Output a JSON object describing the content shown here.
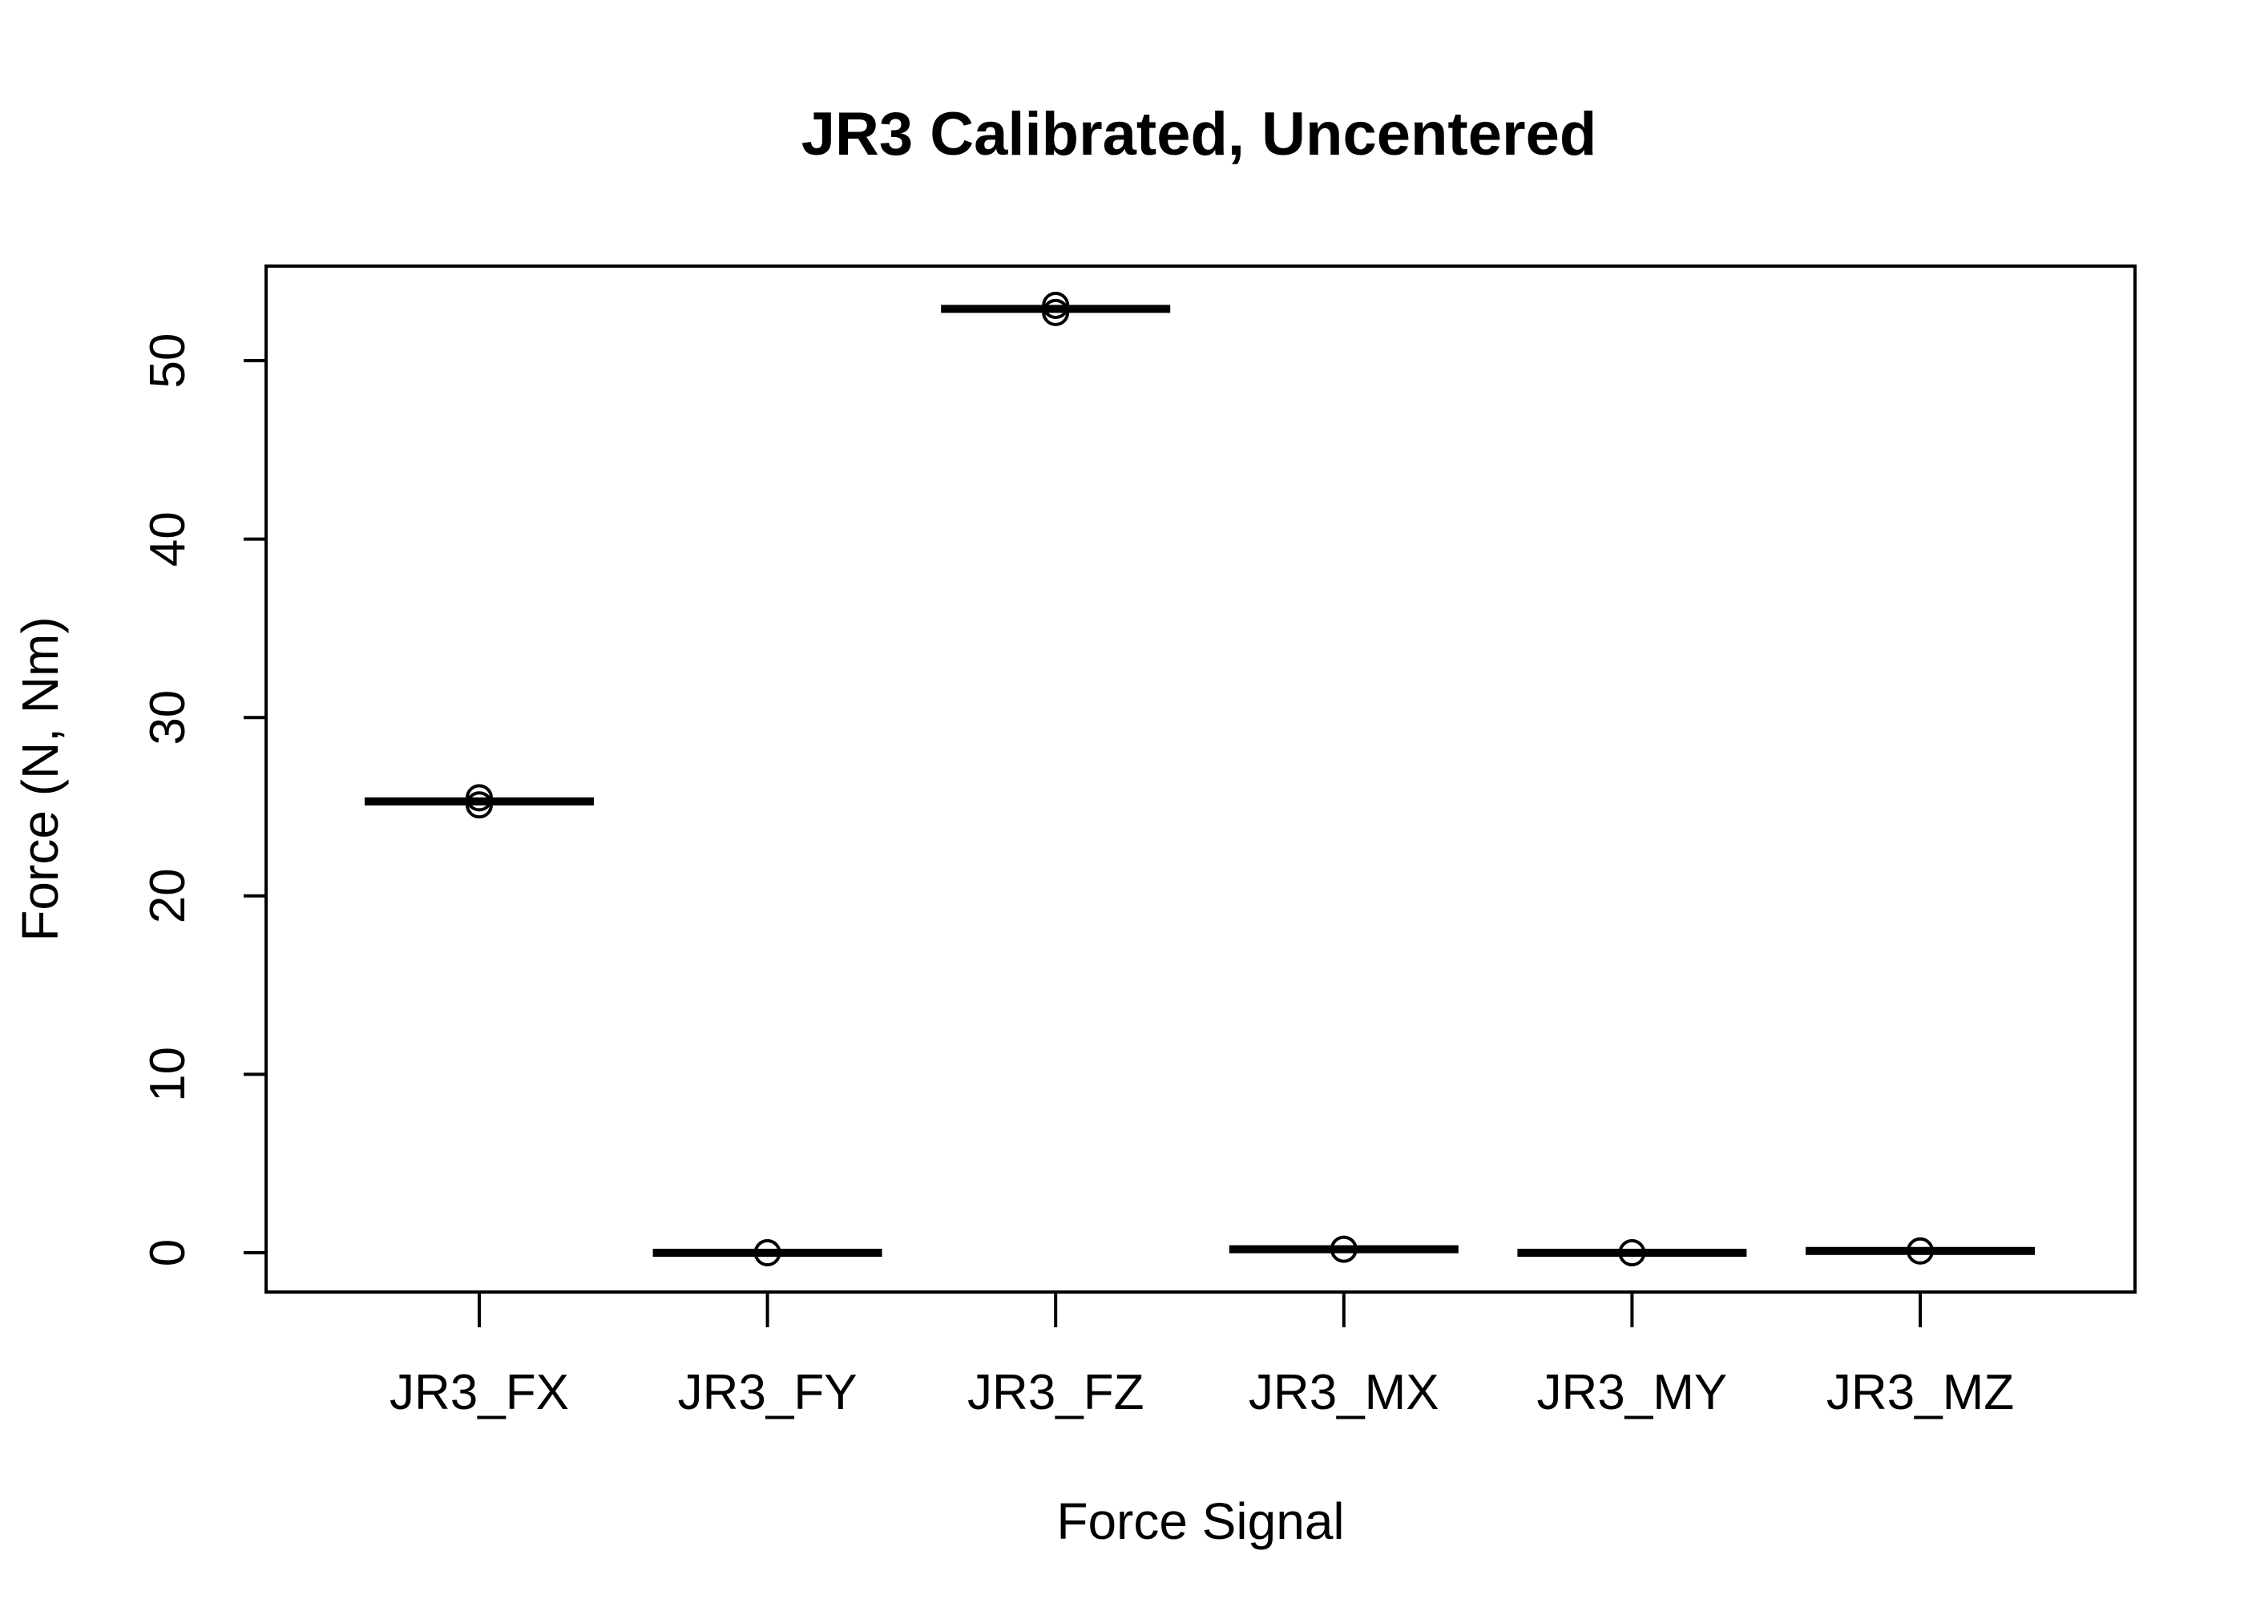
{
  "chart_data": {
    "type": "boxplot",
    "title": "JR3 Calibrated, Uncentered",
    "xlabel": "Force Signal",
    "ylabel": "Force (N, Nm)",
    "categories": [
      "JR3_FX",
      "JR3_FY",
      "JR3_FZ",
      "JR3_MX",
      "JR3_MY",
      "JR3_MZ"
    ],
    "medians": [
      25.3,
      0.0,
      52.9,
      0.2,
      0.0,
      0.1
    ],
    "outliers": [
      [
        25.1,
        25.5
      ],
      [
        0.0
      ],
      [
        52.7,
        53.1
      ],
      [
        0.2
      ],
      [
        0.0
      ],
      [
        0.1
      ]
    ],
    "yticks": [
      0,
      10,
      20,
      30,
      40,
      50
    ],
    "ylim": [
      -2.2,
      55.3
    ],
    "grid": false,
    "legend": "none",
    "colors": {
      "line": "#000000",
      "background": "#ffffff"
    }
  }
}
